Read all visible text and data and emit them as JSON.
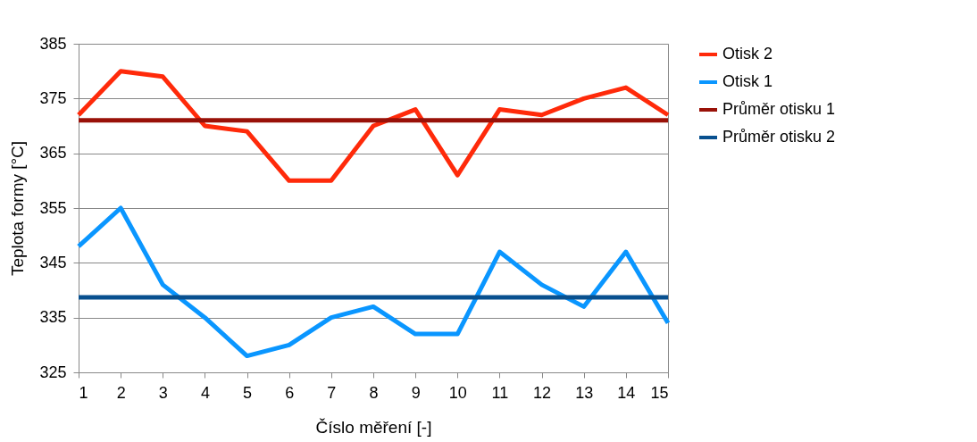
{
  "chart_data": {
    "type": "line",
    "xlabel": "Číslo měření [-]",
    "ylabel": "Teplota formy [°C]",
    "x": [
      1,
      2,
      3,
      4,
      5,
      6,
      7,
      8,
      9,
      10,
      11,
      12,
      13,
      14,
      15
    ],
    "xlim": [
      1,
      15
    ],
    "xticks": [
      1,
      2,
      3,
      4,
      5,
      6,
      7,
      8,
      9,
      10,
      11,
      12,
      13,
      14,
      15
    ],
    "ylim": [
      325,
      385
    ],
    "yticks": [
      325,
      335,
      345,
      355,
      365,
      375,
      385
    ],
    "grid": "y",
    "legend": "right",
    "series": [
      {
        "name": "Otisk 2",
        "color": "#ff2a0a",
        "values": [
          372,
          380,
          379,
          370,
          369,
          360,
          360,
          370,
          373,
          361,
          373,
          372,
          375,
          377,
          372
        ]
      },
      {
        "name": "Otisk 1",
        "color": "#0a96ff",
        "values": [
          348,
          355,
          341,
          335,
          328,
          330,
          335,
          337,
          332,
          332,
          347,
          341,
          337,
          347,
          334
        ]
      },
      {
        "name": "Průměr otisku 1",
        "color": "#991108",
        "values": [
          371,
          371,
          371,
          371,
          371,
          371,
          371,
          371,
          371,
          371,
          371,
          371,
          371,
          371,
          371
        ]
      },
      {
        "name": "Průměr otisku 2",
        "color": "#08508f",
        "values": [
          338.7,
          338.7,
          338.7,
          338.7,
          338.7,
          338.7,
          338.7,
          338.7,
          338.7,
          338.7,
          338.7,
          338.7,
          338.7,
          338.7,
          338.7
        ]
      }
    ]
  }
}
